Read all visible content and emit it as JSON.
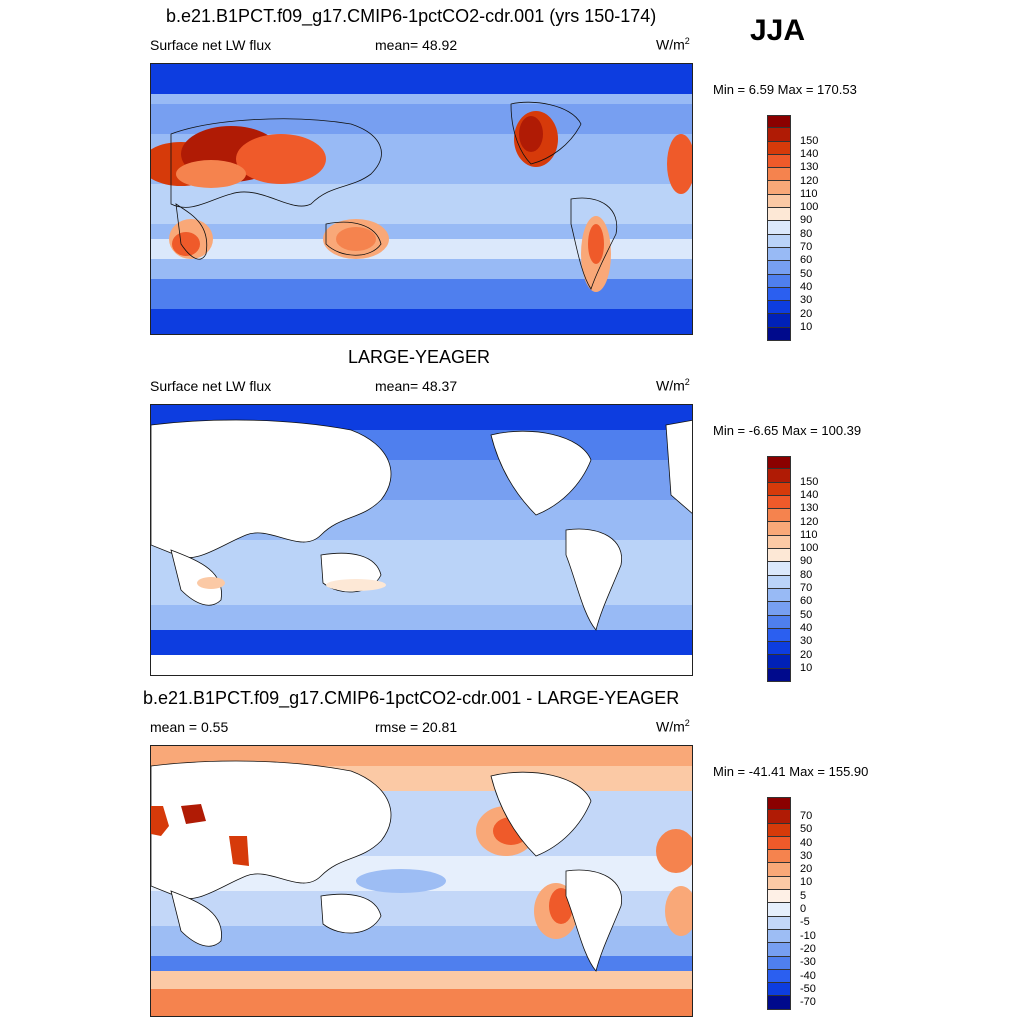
{
  "season": "JJA",
  "panels": [
    {
      "title": "b.e21.B1PCT.f09_g17.CMIP6-1pctCO2-cdr.001 (yrs 150-174)",
      "left_label": "Surface net LW flux",
      "center_label": "mean=  48.92",
      "units": "W/m",
      "units_exp": "2",
      "minmax": "Min =   6.59 Max = 170.53",
      "colorbar": {
        "colors": [
          "#8b0000",
          "#b01b05",
          "#d63a0a",
          "#ef5a2a",
          "#f5834e",
          "#f9a878",
          "#fbc9a5",
          "#fde8d6",
          "#dbe8fb",
          "#bad3f8",
          "#98baf5",
          "#779ff1",
          "#4f7fee",
          "#2b5ff0",
          "#0d3de0",
          "#0021b8",
          "#000a8c"
        ],
        "labels": [
          "150",
          "140",
          "130",
          "120",
          "110",
          "100",
          "90",
          "80",
          "70",
          "60",
          "50",
          "40",
          "30",
          "20",
          "10"
        ]
      }
    },
    {
      "title": "LARGE-YEAGER",
      "left_label": "Surface net LW flux",
      "center_label": "mean=  48.37",
      "units": "W/m",
      "units_exp": "2",
      "minmax": "Min =  -6.65 Max = 100.39",
      "colorbar": {
        "colors": [
          "#8b0000",
          "#b01b05",
          "#d63a0a",
          "#ef5a2a",
          "#f5834e",
          "#f9a878",
          "#fbc9a5",
          "#fde8d6",
          "#dbe8fb",
          "#bad3f8",
          "#98baf5",
          "#779ff1",
          "#4f7fee",
          "#2b5ff0",
          "#0d3de0",
          "#0021b8",
          "#000a8c"
        ],
        "labels": [
          "150",
          "140",
          "130",
          "120",
          "110",
          "100",
          "90",
          "80",
          "70",
          "60",
          "50",
          "40",
          "30",
          "20",
          "10"
        ]
      }
    },
    {
      "title": "b.e21.B1PCT.f09_g17.CMIP6-1pctCO2-cdr.001 - LARGE-YEAGER",
      "left_label": "mean =   0.55",
      "center_label": "rmse =  20.81",
      "units": "W/m",
      "units_exp": "2",
      "minmax": "Min = -41.41 Max = 155.90",
      "colorbar": {
        "colors": [
          "#8b0000",
          "#b01b05",
          "#d63a0a",
          "#ef5a2a",
          "#f5834e",
          "#f9a878",
          "#fbc9a5",
          "#fef0e6",
          "#e6effc",
          "#c3d7f8",
          "#9dbdf4",
          "#779ff1",
          "#4f7fee",
          "#2b5ff0",
          "#0d3de0",
          "#000a8c"
        ],
        "labels": [
          "70",
          "50",
          "40",
          "30",
          "20",
          "10",
          "5",
          "0",
          "-5",
          "-10",
          "-20",
          "-30",
          "-40",
          "-50",
          "-70"
        ]
      }
    }
  ]
}
